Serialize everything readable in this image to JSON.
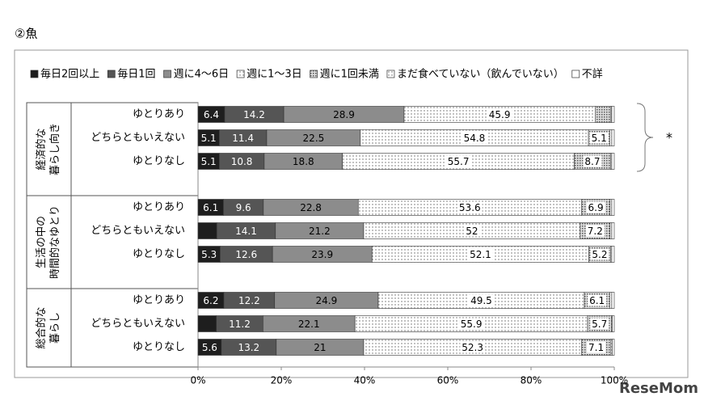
{
  "chart_data": {
    "type": "stacked_bar_h",
    "title": "②魚",
    "categories": [
      "ゆとりあり",
      "どちらともいえない",
      "ゆとりなし",
      "ゆとりあり",
      "どちらともいえない",
      "ゆとりなし",
      "ゆとりあり",
      "どちらともいえない",
      "ゆとりなし"
    ],
    "groups": [
      {
        "label": [
          "経済的な",
          "暮らし向き"
        ],
        "count": 3
      },
      {
        "label": [
          "生活の中の",
          "時間的なゆとり"
        ],
        "count": 3
      },
      {
        "label": [
          "総合的な",
          "暮らし"
        ],
        "count": 3
      }
    ],
    "series": [
      {
        "name": "毎日2回以上",
        "color": "#1e1e1e",
        "values": [
          6.4,
          5.1,
          5.1,
          6.1,
          4.5,
          5.3,
          6.2,
          4.4,
          5.6
        ]
      },
      {
        "name": "毎日1回",
        "color": "#555555",
        "values": [
          14.2,
          11.4,
          10.8,
          9.6,
          14.1,
          12.6,
          12.2,
          11.2,
          13.2
        ]
      },
      {
        "name": "週に4～6日",
        "color": "#8c8c8c",
        "values": [
          28.9,
          22.5,
          18.8,
          22.8,
          21.2,
          23.9,
          24.9,
          22.1,
          21.0
        ]
      },
      {
        "name": "週に1～3日",
        "color": "#d9d9d9",
        "pattern": "dots",
        "values": [
          45.9,
          54.8,
          55.7,
          53.6,
          52.0,
          52.1,
          49.5,
          55.9,
          52.3
        ]
      },
      {
        "name": "週に1回未満",
        "color": "#bdbdbd",
        "pattern": "dense",
        "values": [
          3.8,
          5.1,
          8.7,
          6.9,
          7.2,
          5.2,
          6.1,
          5.7,
          7.1
        ]
      },
      {
        "name": "まだ食べていない（飲んでいない）",
        "color": "#eeeeee",
        "pattern": "dots",
        "values": [
          0.2,
          0.5,
          0.3,
          0.4,
          0.4,
          0.3,
          0.5,
          0.2,
          0.3
        ]
      },
      {
        "name": "不詳",
        "color": "#ffffff",
        "values": [
          0.6,
          0.6,
          0.6,
          0.6,
          0.6,
          0.6,
          0.6,
          0.5,
          0.5
        ]
      }
    ],
    "xlim": [
      0,
      100
    ],
    "xticks": [
      {
        "value": 0,
        "label": "0%"
      },
      {
        "value": 20,
        "label": "20%"
      },
      {
        "value": 40,
        "label": "40%"
      },
      {
        "value": 60,
        "label": "60%"
      },
      {
        "value": 80,
        "label": "80%"
      },
      {
        "value": 100,
        "label": "100%"
      }
    ],
    "annotation": "*",
    "watermark": "ReseMom"
  }
}
